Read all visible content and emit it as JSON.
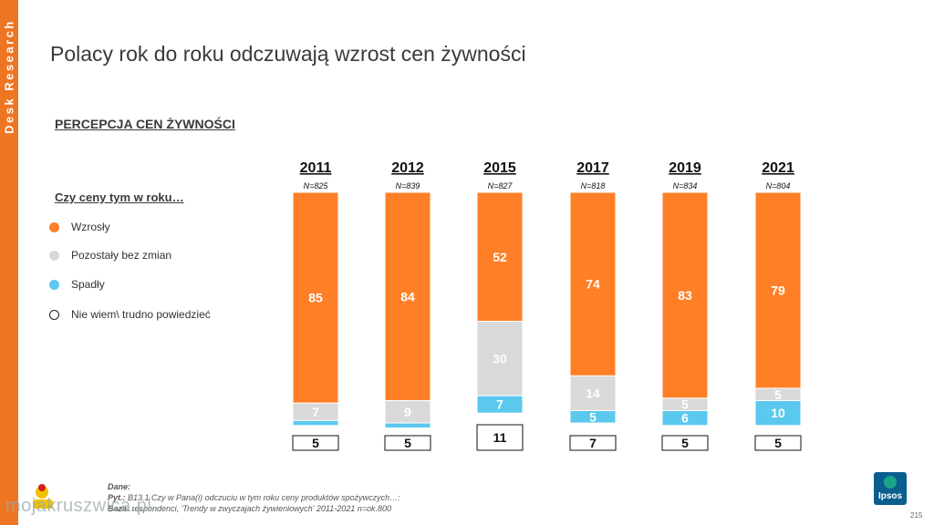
{
  "side_label": "Desk Research",
  "title": "Polacy rok do roku odczuwają wzrost cen żywności",
  "subtitle": "PERCEPCJA CEN ŻYWNOŚCI",
  "legend": {
    "title": "Czy ceny tym w roku…",
    "items": [
      {
        "label": "Wzrosły",
        "color": "#ff7f27"
      },
      {
        "label": "Pozostały bez zmian",
        "color": "#d9d9d9"
      },
      {
        "label": "Spadły",
        "color": "#5bc8ee"
      },
      {
        "label": "Nie wiem\\ trudno powiedzieć",
        "color": "#ffffff"
      }
    ]
  },
  "chart_data": {
    "type": "bar",
    "stacked": true,
    "categories": [
      "2011",
      "2012",
      "2015",
      "2017",
      "2019",
      "2021"
    ],
    "sample_sizes": [
      "N=825",
      "N=839",
      "N=827",
      "N=818",
      "N=834",
      "N=804"
    ],
    "series": [
      {
        "name": "Wzrosły",
        "color": "#ff7f27",
        "values": [
          85,
          84,
          52,
          74,
          83,
          79
        ]
      },
      {
        "name": "Pozostały bez zmian",
        "color": "#d9d9d9",
        "values": [
          7,
          9,
          30,
          14,
          5,
          5
        ]
      },
      {
        "name": "Spadły",
        "color": "#5bc8ee",
        "values": [
          2,
          2,
          7,
          5,
          6,
          10
        ]
      },
      {
        "name": "Nie wiem\\ trudno powiedzieć",
        "color": "#ffffff",
        "values": [
          5,
          5,
          11,
          7,
          5,
          5
        ]
      }
    ],
    "ylim": [
      0,
      100
    ],
    "unit": "%"
  },
  "footer": {
    "line1_label": "Dane:",
    "line2_label": "Pyt.:",
    "line2_text": "B13.1 Czy w Pana(i) odczuciu w tym roku ceny produktów spożywczych…:",
    "line3_label": "Baza:",
    "line3_text": "respondenci, 'Trendy w zwyczajach żywieniowych' 2011-2021 n=ok.800"
  },
  "watermark": "mojakruszwica.pl",
  "logo_text": "Ipsos",
  "page_number": "215"
}
